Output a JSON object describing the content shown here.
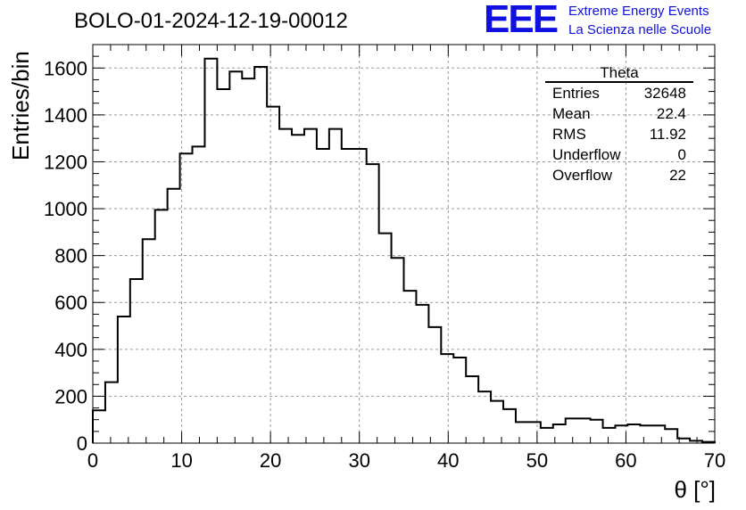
{
  "header": {
    "title": "BOLO-01-2024-12-19-00012",
    "logo_text": "EEE",
    "logo_line1": "Extreme Energy Events",
    "logo_line2": "La Scienza nelle Scuole",
    "logo_color": "#1010e0"
  },
  "stats": {
    "name": "Theta",
    "rows": [
      {
        "label": "Entries",
        "value": "32648"
      },
      {
        "label": "Mean",
        "value": "22.4"
      },
      {
        "label": "RMS",
        "value": "11.92"
      },
      {
        "label": "Underflow",
        "value": "0"
      },
      {
        "label": "Overflow",
        "value": "22"
      }
    ]
  },
  "chart_data": {
    "type": "bar",
    "subtype": "histogram-step",
    "title": "BOLO-01-2024-12-19-00012",
    "xlabel": "θ [°]",
    "ylabel": "Entries/bin",
    "xlim": [
      0,
      70
    ],
    "ylim": [
      0,
      1700
    ],
    "bin_width": 1.4,
    "bin_edges_start": 0,
    "values": [
      140,
      260,
      540,
      700,
      870,
      995,
      1085,
      1235,
      1265,
      1640,
      1510,
      1585,
      1555,
      1605,
      1435,
      1340,
      1315,
      1340,
      1255,
      1340,
      1255,
      1255,
      1190,
      895,
      790,
      650,
      590,
      495,
      380,
      365,
      285,
      220,
      180,
      145,
      90,
      90,
      65,
      80,
      105,
      105,
      100,
      65,
      75,
      80,
      75,
      75,
      60,
      20,
      10,
      5
    ],
    "xticks": [
      0,
      10,
      20,
      30,
      40,
      50,
      60,
      70
    ],
    "yticks": [
      0,
      200,
      400,
      600,
      800,
      1000,
      1200,
      1400,
      1600
    ],
    "grid": true,
    "line_color": "#000000"
  }
}
